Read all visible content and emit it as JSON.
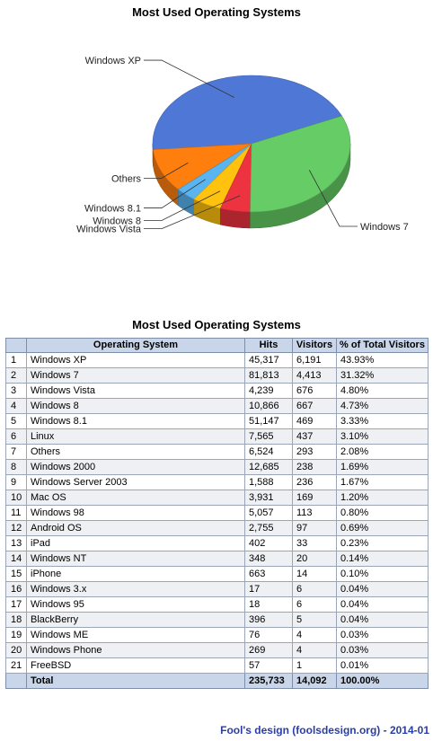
{
  "chart_data": {
    "type": "pie",
    "title": "Most Used Operating Systems",
    "slices": [
      {
        "label": "Windows XP",
        "value": 43.93,
        "color": "#4f78d6"
      },
      {
        "label": "Others",
        "value": 10.12,
        "color": "#ff7f0e"
      },
      {
        "label": "Windows 8.1",
        "value": 3.33,
        "color": "#5ab4f0"
      },
      {
        "label": "Windows 8",
        "value": 4.73,
        "color": "#ffc20e"
      },
      {
        "label": "Windows Vista",
        "value": 4.8,
        "color": "#ee3340"
      },
      {
        "label": "Windows 7",
        "value": 31.32,
        "color": "#66cc66"
      }
    ],
    "legend": "none"
  },
  "table": {
    "title": "Most Used Operating Systems",
    "columns": [
      "",
      "Operating System",
      "Hits",
      "Visitors",
      "% of Total Visitors"
    ],
    "rows": [
      [
        "1",
        "Windows XP",
        "45,317",
        "6,191",
        "43.93%"
      ],
      [
        "2",
        "Windows 7",
        "81,813",
        "4,413",
        "31.32%"
      ],
      [
        "3",
        "Windows Vista",
        "4,239",
        "676",
        "4.80%"
      ],
      [
        "4",
        "Windows 8",
        "10,866",
        "667",
        "4.73%"
      ],
      [
        "5",
        "Windows 8.1",
        "51,147",
        "469",
        "3.33%"
      ],
      [
        "6",
        "Linux",
        "7,565",
        "437",
        "3.10%"
      ],
      [
        "7",
        "Others",
        "6,524",
        "293",
        "2.08%"
      ],
      [
        "8",
        "Windows 2000",
        "12,685",
        "238",
        "1.69%"
      ],
      [
        "9",
        "Windows Server 2003",
        "1,588",
        "236",
        "1.67%"
      ],
      [
        "10",
        "Mac OS",
        "3,931",
        "169",
        "1.20%"
      ],
      [
        "11",
        "Windows 98",
        "5,057",
        "113",
        "0.80%"
      ],
      [
        "12",
        "Android OS",
        "2,755",
        "97",
        "0.69%"
      ],
      [
        "13",
        "iPad",
        "402",
        "33",
        "0.23%"
      ],
      [
        "14",
        "Windows NT",
        "348",
        "20",
        "0.14%"
      ],
      [
        "15",
        "iPhone",
        "663",
        "14",
        "0.10%"
      ],
      [
        "16",
        "Windows 3.x",
        "17",
        "6",
        "0.04%"
      ],
      [
        "17",
        "Windows 95",
        "18",
        "6",
        "0.04%"
      ],
      [
        "18",
        "BlackBerry",
        "396",
        "5",
        "0.04%"
      ],
      [
        "19",
        "Windows ME",
        "76",
        "4",
        "0.03%"
      ],
      [
        "20",
        "Windows Phone",
        "269",
        "4",
        "0.03%"
      ],
      [
        "21",
        "FreeBSD",
        "57",
        "1",
        "0.01%"
      ]
    ],
    "total": [
      "",
      "Total",
      "235,733",
      "14,092",
      "100.00%"
    ]
  },
  "footer": "Fool's design (foolsdesign.org) - 2014-01"
}
